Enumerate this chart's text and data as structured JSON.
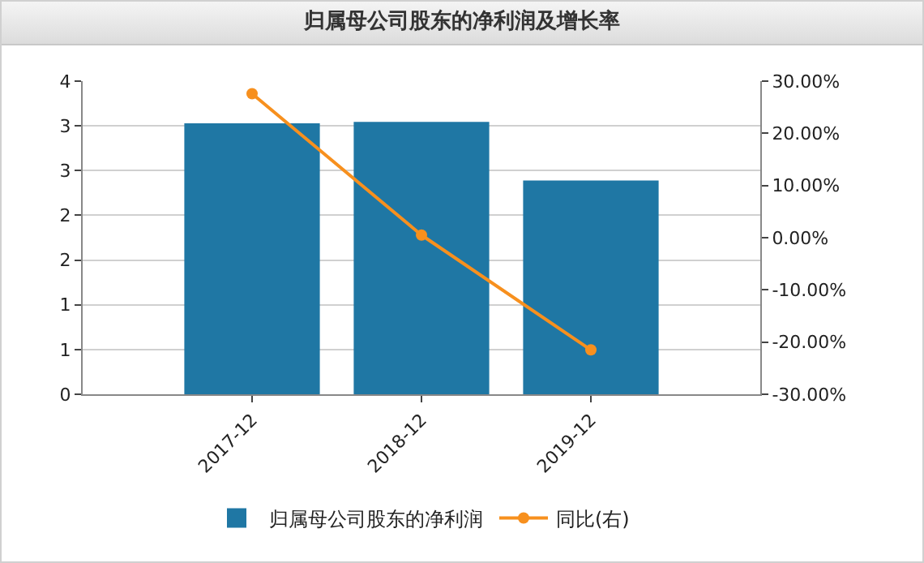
{
  "chart_data": {
    "type": "bar",
    "title": "归属母公司股东的净利润及增长率",
    "categories": [
      "2017-12",
      "2018-12",
      "2019-12"
    ],
    "series": [
      {
        "name": "归属母公司股东的净利润",
        "color": "#1f77a4",
        "values": [
          3.46,
          3.48,
          2.73
        ]
      },
      {
        "name": "同比(右)",
        "type": "line",
        "axis": "y2",
        "color": "#f7901e",
        "values": [
          27.6,
          0.5,
          -21.5
        ]
      }
    ],
    "ylim": [
      0,
      4
    ],
    "yticks": [
      0,
      {
        "value": 0.571,
        "label": "1"
      },
      {
        "value": 1.143,
        "label": "1"
      },
      {
        "value": 1.714,
        "label": "2"
      },
      {
        "value": 2.286,
        "label": "2"
      },
      {
        "value": 2.857,
        "label": "3"
      },
      {
        "value": 3.429,
        "label": "3"
      },
      4
    ],
    "y2lim": [
      -30,
      30
    ],
    "y2ticks": [
      {
        "value": -30,
        "label": "-30.00%"
      },
      {
        "value": -20,
        "label": "-20.00%"
      },
      {
        "value": -10,
        "label": "-10.00%"
      },
      {
        "value": 0,
        "label": "0.00%"
      },
      {
        "value": 10,
        "label": "10.00%"
      },
      {
        "value": 20,
        "label": "20.00%"
      },
      {
        "value": 30,
        "label": "30.00%"
      }
    ],
    "grid": "y",
    "legend": "bottom",
    "marker": "circle"
  }
}
